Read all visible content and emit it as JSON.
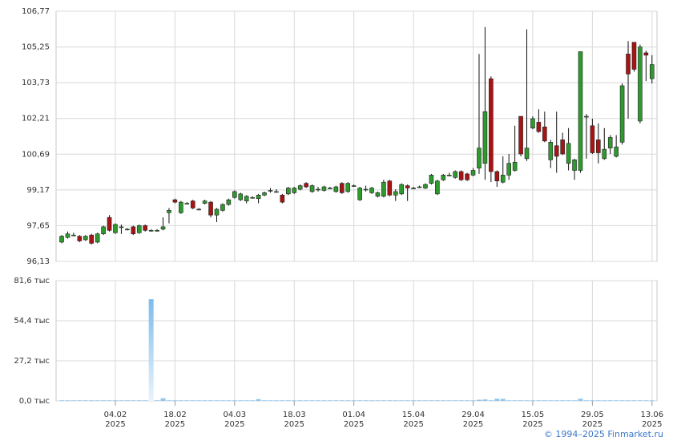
{
  "chart_data": [
    {
      "type": "candlestick",
      "categories": [
        null,
        null,
        null,
        null,
        null,
        null,
        null,
        null,
        null,
        [
          "04.02",
          "2025"
        ],
        null,
        null,
        null,
        null,
        null,
        null,
        null,
        null,
        null,
        [
          "18.02",
          "2025"
        ],
        null,
        null,
        null,
        null,
        null,
        null,
        null,
        null,
        null,
        [
          "04.03",
          "2025"
        ],
        null,
        null,
        null,
        null,
        null,
        null,
        null,
        null,
        null,
        [
          "18.03",
          "2025"
        ],
        null,
        null,
        null,
        null,
        null,
        null,
        null,
        null,
        null,
        [
          "01.04",
          "2025"
        ],
        null,
        null,
        null,
        null,
        null,
        null,
        null,
        null,
        null,
        [
          "15.04",
          "2025"
        ],
        null,
        null,
        null,
        null,
        null,
        null,
        null,
        null,
        null,
        [
          "29.04",
          "2025"
        ],
        null,
        null,
        null,
        null,
        null,
        null,
        null,
        null,
        null,
        [
          "15.05",
          "2025"
        ],
        null,
        null,
        null,
        null,
        null,
        null,
        null,
        null,
        null,
        [
          "29.05",
          "2025"
        ],
        null,
        null,
        null,
        null,
        null,
        null,
        null,
        null,
        null,
        [
          "13.06",
          "2025"
        ]
      ],
      "open": [
        96.95,
        97.15,
        97.25,
        97.2,
        97.05,
        97.25,
        96.95,
        97.3,
        98.0,
        97.35,
        97.6,
        97.5,
        97.6,
        97.35,
        97.65,
        97.45,
        97.45,
        97.5,
        98.2,
        98.75,
        98.2,
        98.6,
        98.7,
        98.35,
        98.6,
        98.65,
        98.1,
        98.3,
        98.55,
        98.85,
        98.75,
        98.7,
        98.85,
        98.8,
        98.95,
        99.15,
        99.1,
        98.95,
        99.0,
        99.05,
        99.2,
        99.45,
        99.1,
        99.2,
        99.15,
        99.25,
        99.1,
        99.45,
        99.1,
        99.35,
        98.75,
        99.2,
        99.05,
        98.9,
        98.9,
        99.55,
        98.95,
        99.0,
        99.35,
        99.25,
        99.3,
        99.25,
        99.45,
        99.0,
        99.6,
        99.8,
        99.7,
        99.95,
        99.85,
        99.8,
        100.1,
        100.3,
        103.9,
        99.95,
        99.5,
        99.8,
        100.0,
        102.3,
        100.5,
        101.8,
        102.05,
        101.85,
        100.45,
        101.05,
        101.3,
        100.3,
        100.0,
        100.0,
        102.3,
        101.9,
        101.3,
        100.5,
        100.95,
        100.6,
        101.2,
        104.95,
        105.45,
        102.1,
        105.0,
        103.9
      ],
      "high": [
        97.25,
        97.4,
        97.35,
        97.25,
        97.25,
        97.3,
        97.35,
        97.65,
        98.1,
        97.75,
        97.7,
        97.55,
        97.65,
        97.7,
        97.7,
        97.5,
        97.5,
        98.0,
        98.4,
        98.8,
        98.7,
        98.65,
        98.75,
        98.4,
        98.75,
        98.7,
        98.4,
        98.6,
        98.8,
        99.15,
        99.05,
        98.95,
        98.9,
        99.0,
        99.1,
        99.25,
        99.2,
        99.0,
        99.3,
        99.3,
        99.4,
        99.5,
        99.4,
        99.3,
        99.35,
        99.3,
        99.35,
        99.5,
        99.5,
        99.4,
        99.3,
        99.35,
        99.3,
        99.1,
        99.6,
        99.6,
        99.2,
        99.45,
        99.4,
        99.3,
        99.35,
        99.45,
        99.85,
        99.6,
        99.85,
        99.9,
        100.0,
        100.0,
        99.9,
        100.1,
        104.95,
        106.1,
        104.0,
        100.0,
        100.6,
        100.7,
        101.9,
        102.3,
        106.0,
        102.3,
        102.6,
        102.5,
        101.3,
        102.5,
        101.6,
        101.8,
        100.5,
        105.05,
        102.4,
        102.2,
        102.0,
        101.8,
        101.5,
        101.5,
        103.7,
        105.5,
        105.45,
        105.35,
        105.1,
        104.9
      ],
      "low": [
        96.9,
        97.1,
        97.2,
        96.95,
        97.0,
        96.85,
        96.9,
        97.25,
        97.4,
        97.3,
        97.3,
        97.45,
        97.25,
        97.3,
        97.4,
        97.4,
        97.4,
        97.45,
        97.75,
        98.6,
        98.15,
        98.55,
        98.35,
        98.3,
        98.55,
        98.0,
        97.8,
        98.25,
        98.5,
        98.8,
        98.7,
        98.6,
        98.8,
        98.6,
        98.9,
        99.05,
        99.05,
        98.6,
        98.95,
        99.0,
        99.15,
        99.25,
        99.05,
        99.1,
        99.1,
        99.2,
        99.05,
        99.0,
        99.05,
        99.3,
        98.7,
        99.1,
        99.0,
        98.85,
        98.85,
        98.9,
        98.7,
        98.95,
        98.7,
        99.2,
        99.25,
        99.2,
        99.4,
        98.95,
        99.55,
        99.75,
        99.65,
        99.55,
        99.55,
        99.75,
        99.85,
        99.6,
        99.5,
        99.3,
        99.45,
        99.6,
        99.95,
        100.6,
        100.4,
        101.75,
        101.6,
        101.2,
        100.1,
        99.9,
        100.65,
        100.0,
        99.6,
        99.9,
        100.5,
        100.7,
        100.3,
        100.45,
        100.7,
        100.55,
        101.1,
        102.2,
        104.2,
        102.0,
        103.8,
        103.7
      ],
      "close": [
        97.2,
        97.3,
        97.25,
        97.0,
        97.2,
        96.9,
        97.3,
        97.6,
        97.45,
        97.7,
        97.6,
        97.5,
        97.3,
        97.65,
        97.45,
        97.45,
        97.45,
        97.6,
        98.3,
        98.65,
        98.65,
        98.6,
        98.4,
        98.35,
        98.7,
        98.1,
        98.35,
        98.55,
        98.75,
        99.1,
        99.0,
        98.9,
        98.85,
        98.95,
        99.05,
        99.15,
        99.1,
        98.65,
        99.25,
        99.25,
        99.35,
        99.3,
        99.35,
        99.2,
        99.3,
        99.25,
        99.3,
        99.05,
        99.45,
        99.35,
        99.25,
        99.2,
        99.25,
        99.05,
        99.5,
        98.95,
        99.1,
        99.4,
        99.25,
        99.25,
        99.3,
        99.4,
        99.8,
        99.55,
        99.8,
        99.8,
        99.95,
        99.6,
        99.6,
        100.0,
        100.95,
        102.5,
        99.95,
        99.55,
        99.8,
        100.3,
        100.35,
        100.7,
        100.95,
        102.2,
        101.65,
        101.25,
        101.2,
        100.6,
        100.7,
        101.15,
        100.45,
        105.05,
        102.3,
        100.75,
        100.75,
        100.9,
        101.4,
        101.0,
        103.6,
        104.1,
        104.3,
        105.25,
        104.9,
        104.5
      ],
      "up_color": "#2e9a2e",
      "down_color": "#a81414",
      "ylim": [
        96.13,
        106.77
      ],
      "yticks": [
        {
          "value": 96.13,
          "label": "96,13"
        },
        {
          "value": 97.65,
          "label": "97,65"
        },
        {
          "value": 99.17,
          "label": "99,17"
        },
        {
          "value": 100.69,
          "label": "100,69"
        },
        {
          "value": 102.21,
          "label": "102,21"
        },
        {
          "value": 103.73,
          "label": "103,73"
        },
        {
          "value": 105.25,
          "label": "105,25"
        },
        {
          "value": 106.77,
          "label": "106,77"
        }
      ],
      "grid": true
    },
    {
      "type": "bar",
      "values": [
        400,
        400,
        400,
        400,
        400,
        400,
        400,
        400,
        400,
        400,
        400,
        400,
        400,
        400,
        400,
        69000,
        400,
        1800,
        400,
        400,
        400,
        400,
        400,
        400,
        400,
        400,
        400,
        400,
        400,
        400,
        400,
        400,
        400,
        1200,
        400,
        400,
        400,
        400,
        400,
        400,
        400,
        400,
        400,
        400,
        400,
        400,
        400,
        400,
        400,
        400,
        400,
        400,
        400,
        400,
        400,
        400,
        400,
        400,
        400,
        400,
        400,
        400,
        400,
        400,
        400,
        400,
        400,
        400,
        400,
        400,
        800,
        1000,
        400,
        1500,
        1400,
        400,
        400,
        400,
        400,
        400,
        400,
        400,
        400,
        400,
        400,
        400,
        400,
        1500,
        400,
        400,
        400,
        400,
        400,
        400,
        400,
        400,
        400,
        400,
        400,
        400
      ],
      "color": "#8ec6f0",
      "ylim": [
        0,
        81600
      ],
      "yticks": [
        {
          "value": 0,
          "label": "0,0 тыс"
        },
        {
          "value": 27200,
          "label": "27,2 тыс"
        },
        {
          "value": 54400,
          "label": "54,4 тыс"
        },
        {
          "value": 81600,
          "label": "81,6 тыс"
        }
      ],
      "grid": true
    }
  ],
  "footer": "© 1994–2025 Finmarket.ru"
}
